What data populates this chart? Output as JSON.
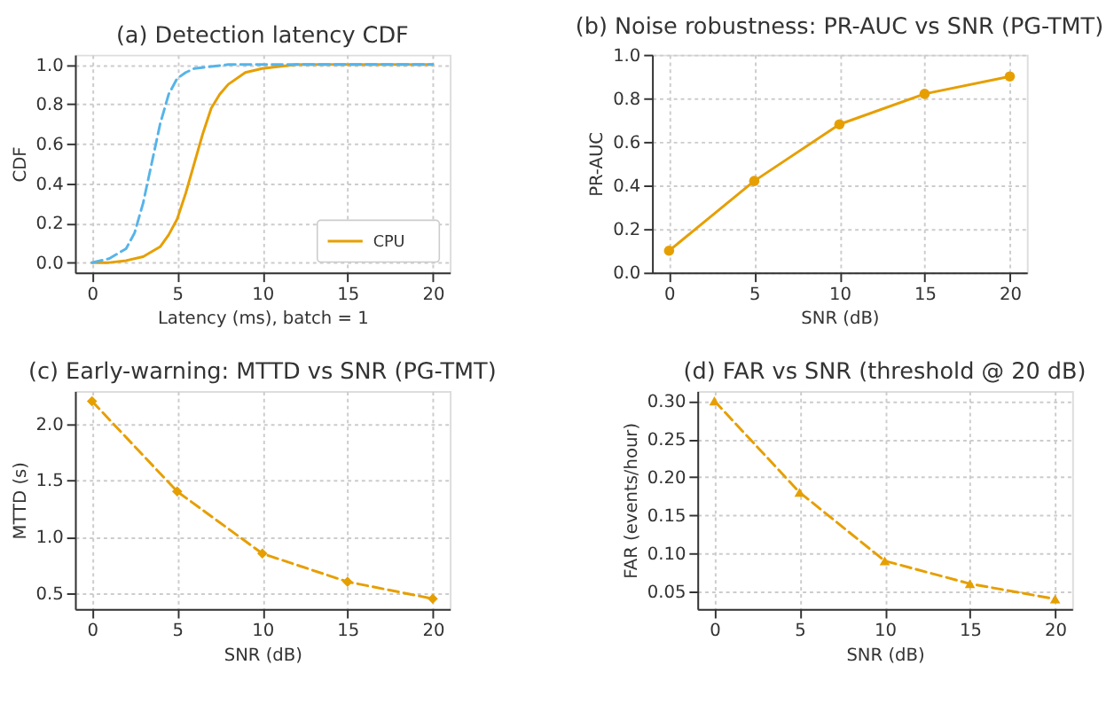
{
  "chart_data": [
    {
      "type": "line",
      "title": "(a) Detection latency CDF",
      "xlabel": "Latency (ms), batch = 1",
      "ylabel": "CDF",
      "xlim": [
        -1,
        21
      ],
      "xticks": [
        0,
        5,
        10,
        15,
        20
      ],
      "ylim": [
        -0.05,
        1.05
      ],
      "yticks": [
        {
          "value": 0,
          "label": "0.0"
        },
        0.2,
        0.4,
        0.6,
        0.8,
        {
          "value": 1,
          "label": "1.0"
        }
      ],
      "grid": true,
      "legend": "bottom right",
      "marker": "none",
      "series": [
        {
          "name": "CPU",
          "color": "#e69f00",
          "line_style": "solid",
          "x": [
            0,
            1,
            2,
            3,
            4,
            4.5,
            5,
            5.5,
            6,
            6.5,
            7,
            7.5,
            8,
            9,
            10,
            11,
            12,
            15,
            20
          ],
          "values": [
            0.0,
            0.0,
            0.01,
            0.03,
            0.08,
            0.14,
            0.22,
            0.35,
            0.5,
            0.65,
            0.78,
            0.85,
            0.9,
            0.96,
            0.98,
            0.99,
            1.0,
            1.0,
            1.0
          ]
        },
        {
          "color": "#56b4e9",
          "line_style": "dashed",
          "x": [
            0,
            1,
            2,
            2.5,
            3,
            3.5,
            4,
            4.5,
            5,
            5.5,
            6,
            7,
            8,
            10,
            15,
            20
          ],
          "values": [
            0.0,
            0.02,
            0.07,
            0.15,
            0.3,
            0.5,
            0.7,
            0.85,
            0.93,
            0.96,
            0.98,
            0.99,
            1.0,
            1.0,
            1.0,
            1.0
          ]
        }
      ]
    },
    {
      "type": "line",
      "title": "(b) Noise robustness: PR-AUC vs SNR (PG-TMT)",
      "xlabel": "SNR (dB)",
      "ylabel": "PR-AUC",
      "xlim": [
        -1,
        21
      ],
      "xticks": [
        0,
        5,
        10,
        15,
        20
      ],
      "ylim": [
        0.0,
        1.0
      ],
      "yticks": [
        {
          "value": 0,
          "label": "0.0"
        },
        0.2,
        0.4,
        0.6,
        0.8,
        {
          "value": 1,
          "label": "1.0"
        }
      ],
      "grid": true,
      "marker": "circle",
      "line_style": "solid",
      "series": [
        {
          "color": "#e69f00",
          "x": [
            0,
            5,
            10,
            15,
            20
          ],
          "values": [
            0.1,
            0.42,
            0.68,
            0.82,
            0.9
          ]
        }
      ]
    },
    {
      "type": "line",
      "title": "(c) Early-warning: MTTD vs SNR (PG-TMT)",
      "xlabel": "SNR (dB)",
      "ylabel": "MTTD (s)",
      "xlim": [
        -1,
        21
      ],
      "xticks": [
        0,
        5,
        10,
        15,
        20
      ],
      "ylim": [
        0.36,
        2.29
      ],
      "yticks": [
        0.5,
        {
          "value": 1,
          "label": "1.0"
        },
        1.5,
        {
          "value": 2,
          "label": "2.0"
        }
      ],
      "grid": true,
      "marker": "diamond",
      "line_style": "dashed",
      "series": [
        {
          "color": "#e69f00",
          "x": [
            0,
            5,
            10,
            15,
            20
          ],
          "values": [
            2.2,
            1.4,
            0.85,
            0.6,
            0.45
          ]
        }
      ]
    },
    {
      "type": "line",
      "title": "(d) FAR vs SNR (threshold @ 20 dB)",
      "xlabel": "SNR (dB)",
      "ylabel": "FAR (events/hour)",
      "xlim": [
        -1,
        21
      ],
      "xticks": [
        0,
        5,
        10,
        15,
        20
      ],
      "ylim": [
        0.027,
        0.313
      ],
      "yticks": [
        0.05,
        {
          "value": 0.1,
          "label": "0.10"
        },
        0.15,
        {
          "value": 0.2,
          "label": "0.20"
        },
        0.25,
        {
          "value": 0.3,
          "label": "0.30"
        }
      ],
      "grid": true,
      "marker": "triangle",
      "line_style": "dashed",
      "series": [
        {
          "color": "#e69f00",
          "x": [
            0,
            5,
            10,
            15,
            20
          ],
          "values": [
            0.3,
            0.18,
            0.09,
            0.06,
            0.04
          ]
        }
      ]
    }
  ]
}
